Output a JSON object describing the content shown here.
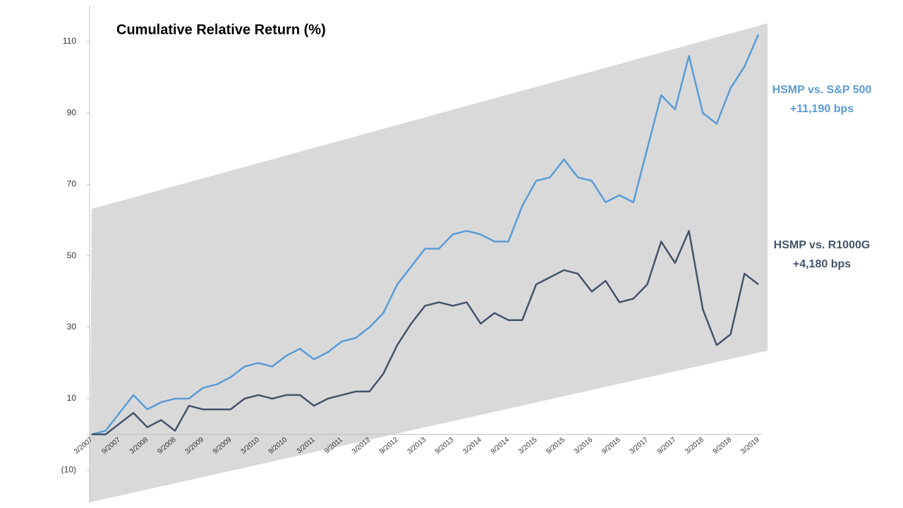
{
  "chart_data": {
    "type": "line",
    "title": "Cumulative Relative Return (%)",
    "categories": [
      "3/2007",
      null,
      "9/2007",
      null,
      "3/2008",
      null,
      "9/2008",
      null,
      "3/2009",
      null,
      "9/2009",
      null,
      "3/2010",
      null,
      "9/2010",
      null,
      "3/2011",
      null,
      "9/2011",
      null,
      "3/2012",
      null,
      "9/2012",
      null,
      "3/2013",
      null,
      "9/2013",
      null,
      "3/2014",
      null,
      "9/2014",
      null,
      "3/2015",
      null,
      "9/2015",
      null,
      "3/2016",
      null,
      "9/2016",
      null,
      "3/2017",
      null,
      "9/2017",
      null,
      "3/2018",
      null,
      "9/2018",
      null,
      "3/2019"
    ],
    "series": [
      {
        "name": "HSMP vs. S&P 500",
        "annotation": "+11,190 bps",
        "color": "#5b9bd5",
        "values": [
          0,
          1,
          6,
          11,
          7,
          9,
          10,
          10,
          13,
          14,
          16,
          19,
          20,
          19,
          22,
          24,
          21,
          23,
          26,
          27,
          30,
          34,
          42,
          47,
          52,
          52,
          56,
          57,
          56,
          54,
          54,
          64,
          71,
          72,
          77,
          72,
          71,
          65,
          67,
          65,
          80,
          95,
          91,
          106,
          90,
          87,
          97,
          103,
          112
        ]
      },
      {
        "name": "HSMP vs. R1000G",
        "annotation": "+4,180 bps",
        "color": "#44546a",
        "values": [
          0,
          0,
          3,
          6,
          2,
          4,
          1,
          8,
          7,
          7,
          7,
          10,
          11,
          10,
          11,
          11,
          8,
          10,
          11,
          12,
          12,
          17,
          25,
          31,
          36,
          37,
          36,
          37,
          31,
          34,
          32,
          32,
          42,
          44,
          46,
          45,
          40,
          43,
          37,
          38,
          42,
          54,
          48,
          57,
          35,
          25,
          28,
          45,
          42
        ]
      }
    ],
    "ylim": [
      -20,
      120
    ],
    "yticks": [
      {
        "value": -10,
        "label": "(10)"
      },
      10,
      30,
      50,
      70,
      90,
      110
    ]
  }
}
